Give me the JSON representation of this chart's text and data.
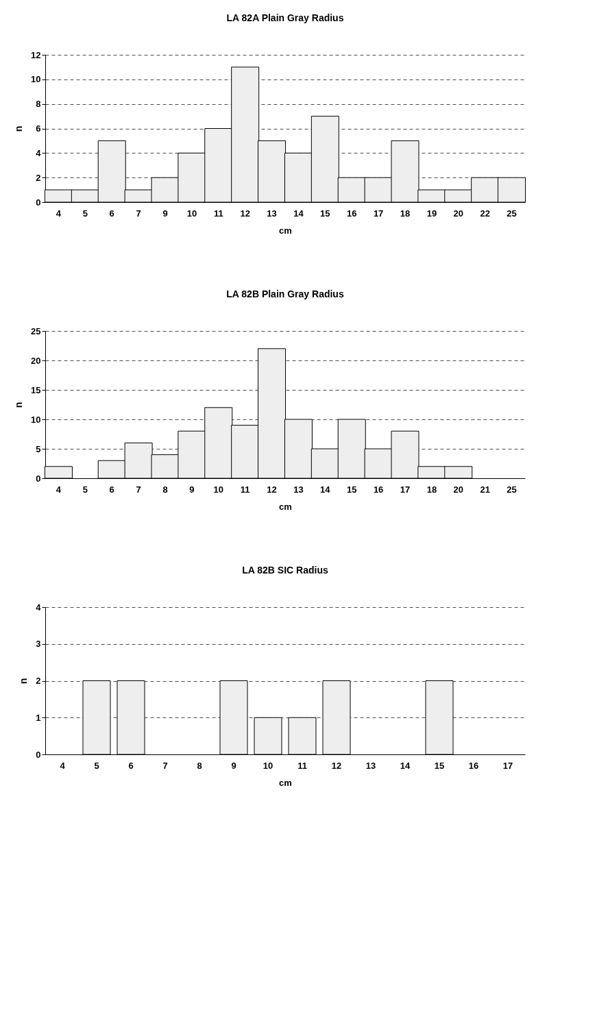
{
  "chart_data": [
    {
      "type": "bar",
      "title": "LA 82A Plain Gray Radius",
      "xlabel": "cm",
      "ylabel": "n",
      "categories": [
        "4",
        "5",
        "6",
        "7",
        "9",
        "10",
        "11",
        "12",
        "13",
        "14",
        "15",
        "16",
        "17",
        "18",
        "19",
        "20",
        "22",
        "25"
      ],
      "values": [
        1,
        1,
        5,
        1,
        2,
        4,
        6,
        11,
        5,
        4,
        7,
        2,
        2,
        5,
        1,
        1,
        2,
        2
      ],
      "color": "#eeeeee",
      "ylim": [
        0,
        12
      ],
      "yticks": [
        0,
        2,
        4,
        6,
        8,
        10,
        12
      ],
      "grid": "y"
    },
    {
      "type": "bar",
      "title": "LA 82B Plain Gray Radius",
      "xlabel": "cm",
      "ylabel": "n",
      "categories": [
        "4",
        "5",
        "6",
        "7",
        "8",
        "9",
        "10",
        "11",
        "12",
        "13",
        "14",
        "15",
        "16",
        "17",
        "18",
        "20",
        "21",
        "25"
      ],
      "values": [
        2,
        null,
        3,
        6,
        4,
        8,
        12,
        9,
        22,
        10,
        5,
        10,
        5,
        8,
        2,
        2,
        null,
        null
      ],
      "color": "#eeeeee",
      "ylim": [
        0,
        25
      ],
      "yticks": [
        0,
        5,
        10,
        15,
        20,
        25
      ],
      "grid": "y"
    },
    {
      "type": "bar",
      "title": "LA 82B SIC Radius",
      "xlabel": "cm",
      "ylabel": "n",
      "categories": [
        "4",
        "5",
        "6",
        "7",
        "8",
        "9",
        "10",
        "11",
        "12",
        "13",
        "14",
        "15",
        "16",
        "17"
      ],
      "values": [
        null,
        2,
        2,
        null,
        null,
        2,
        1,
        1,
        2,
        null,
        null,
        2,
        null,
        null
      ],
      "color": "#eeeeee",
      "ylim": [
        0,
        4
      ],
      "yticks": [
        0,
        1,
        2,
        3,
        4
      ],
      "grid": "y"
    }
  ]
}
